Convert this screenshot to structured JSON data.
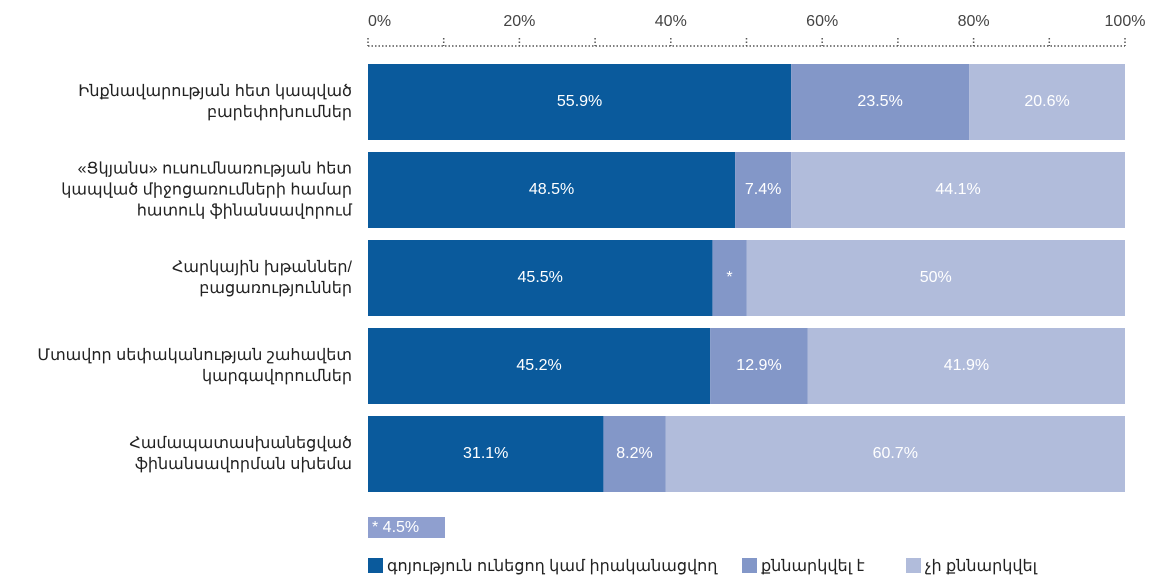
{
  "chart_data": {
    "type": "stacked_barh",
    "categories": [
      "Ինքնավարության հետ կապված\nբարեփոխումներ",
      "«Ցկյանս» ուսումնառության հետ\nկապված միջոցառումների համար\nհատուկ ֆինանսավորում",
      "Հարկային խթաններ/\nբացառություններ",
      "Մտավոր սեփականության շահավետ\nկարգավորումներ",
      "Համապատասխանեցված\nֆինանսավորման սխեմա"
    ],
    "series": [
      {
        "name": "գոյություն ունեցող կամ իրականացվող",
        "color": "#0a5a9c",
        "values": [
          55.9,
          48.5,
          45.5,
          45.2,
          31.1
        ],
        "value_labels": [
          "55.9%",
          "48.5%",
          "45.5%",
          "45.2%",
          "31.1%"
        ]
      },
      {
        "name": "քննարկվել է",
        "color": "#8397c8",
        "values": [
          23.5,
          7.4,
          4.5,
          12.9,
          8.2
        ],
        "value_labels": [
          "23.5%",
          "7.4%",
          "*",
          "12.9%",
          "8.2%"
        ]
      },
      {
        "name": "չի քննարկվել",
        "color": "#b1bcdb",
        "values": [
          20.6,
          44.1,
          50,
          41.9,
          60.7
        ],
        "value_labels": [
          "20.6%",
          "44.1%",
          "50%",
          "41.9%",
          "60.7%"
        ]
      }
    ],
    "xlim": [
      0,
      100
    ],
    "xticks": [
      {
        "value": 0,
        "label": "0%"
      },
      {
        "value": 20,
        "label": "20%"
      },
      {
        "value": 40,
        "label": "40%"
      },
      {
        "value": 60,
        "label": "60%"
      },
      {
        "value": 80,
        "label": "80%"
      },
      {
        "value": 100,
        "label": "100%"
      }
    ],
    "xminorticks": [
      10,
      30,
      50,
      70,
      90
    ],
    "annotation": "* 4.5%"
  }
}
